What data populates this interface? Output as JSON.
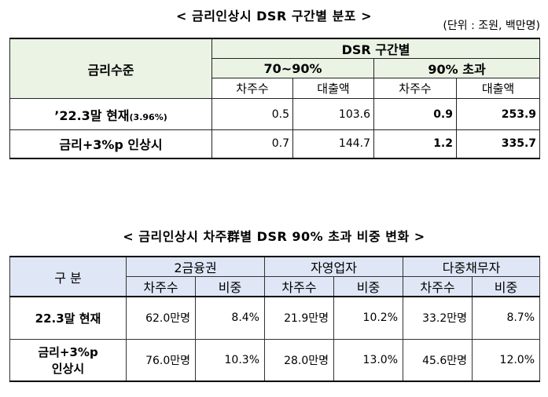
{
  "table1": {
    "title": "< 금리인상시 DSR 구간별 분포 >",
    "unit": "(단위 : 조원, 백만명)",
    "row_header": "금리수준",
    "group_header": "DSR 구간별",
    "bands": [
      "70~90%",
      "90% 초과"
    ],
    "subheaders": [
      "차주수",
      "대출액",
      "차주수",
      "대출액"
    ],
    "rows": [
      {
        "label_main": "’22.3말 현재",
        "label_small": "(3.96%)",
        "values": [
          "0.5",
          "103.6",
          "0.9",
          "253.9"
        ]
      },
      {
        "label_main": "금리+3%p 인상시",
        "label_small": "",
        "values": [
          "0.7",
          "144.7",
          "1.2",
          "335.7"
        ]
      }
    ]
  },
  "table2": {
    "title": "< 금리인상시 차주群별 DSR 90% 초과 비중 변화 >",
    "row_header": "구 분",
    "groups": [
      "2금융권",
      "자영업자",
      "다중채무자"
    ],
    "subheaders": [
      "차주수",
      "비중",
      "차주수",
      "비중",
      "차주수",
      "비중"
    ],
    "rows": [
      {
        "label": "22.3말 현재",
        "label2": "",
        "values": [
          "62.0만명",
          "8.4%",
          "21.9만명",
          "10.2%",
          "33.2만명",
          "8.7%"
        ]
      },
      {
        "label": "금리+3%p",
        "label2": "인상시",
        "values": [
          "76.0만명",
          "10.3%",
          "28.0만명",
          "13.0%",
          "45.6만명",
          "12.0%"
        ]
      }
    ]
  }
}
